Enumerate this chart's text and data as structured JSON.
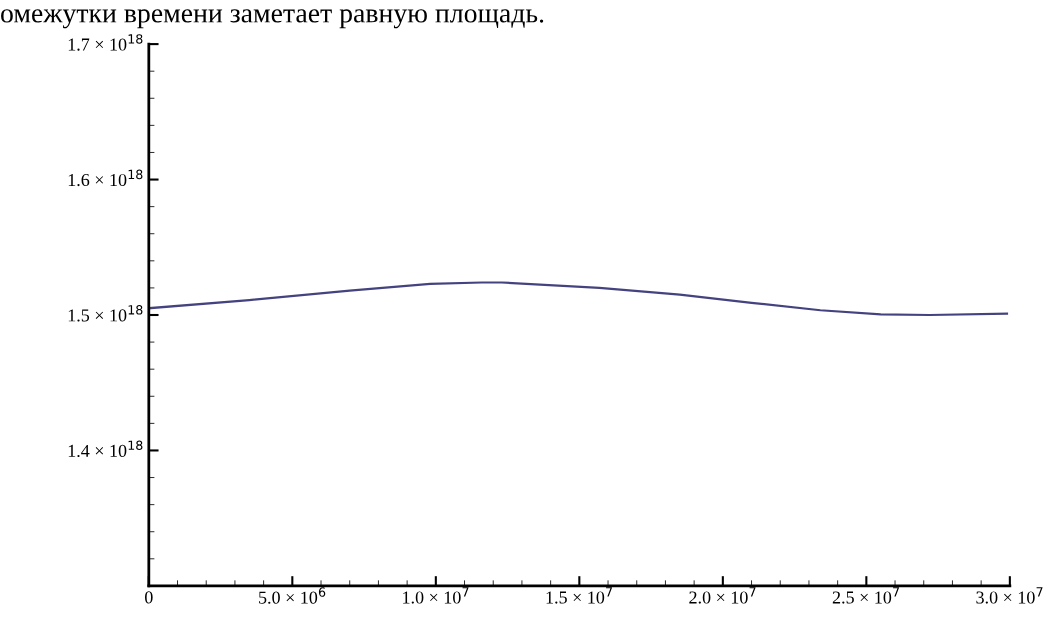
{
  "chart_data": {
    "type": "line",
    "annotations": [
      "омежутки времени заметает равную площадь."
    ],
    "x": [
      0,
      3500000.0,
      7000000.0,
      9800000.0,
      11600000.0,
      12300000.0,
      15700000.0,
      18500000.0,
      21000000.0,
      23400000.0,
      25500000.0,
      27200000.0,
      29900000.0
    ],
    "series": [
      {
        "color": "#45437f",
        "values": [
          1.505e+18,
          1.511e+18,
          1.518e+18,
          1.523e+18,
          1.524e+18,
          1.524e+18,
          1.52e+18,
          1.515e+18,
          1.509e+18,
          1.5035e+18,
          1.5005e+18,
          1.5e+18,
          1.501e+18
        ]
      }
    ],
    "xlim": [
      0,
      30000000.0
    ],
    "ylim": [
      1.3e+18,
      1.7e+18
    ],
    "xticks": [
      0,
      {
        "value": 5000000.0,
        "label": "5.0 × 10$^{6}$"
      },
      {
        "value": 10000000.0,
        "label": "1.0 × 10$^{7}$"
      },
      {
        "value": 15000000.0,
        "label": "1.5 × 10$^{7}$"
      },
      {
        "value": 20000000.0,
        "label": "2.0 × 10$^{7}$"
      },
      {
        "value": 25000000.0,
        "label": "2.5 × 10$^{7}$"
      },
      {
        "value": 30000000.0,
        "label": "3.0 × 10$^{7}$"
      }
    ],
    "yticks": [
      {
        "value": 1.4e+18,
        "label": "1.4 × 10$^{18}$"
      },
      {
        "value": 1.5e+18,
        "label": "1.5 × 10$^{18}$"
      },
      {
        "value": 1.6e+18,
        "label": "1.6 × 10$^{18}$"
      },
      {
        "value": 1.7e+18,
        "label": "1.7 × 10$^{18}$"
      }
    ],
    "grid": false,
    "legend": false
  }
}
